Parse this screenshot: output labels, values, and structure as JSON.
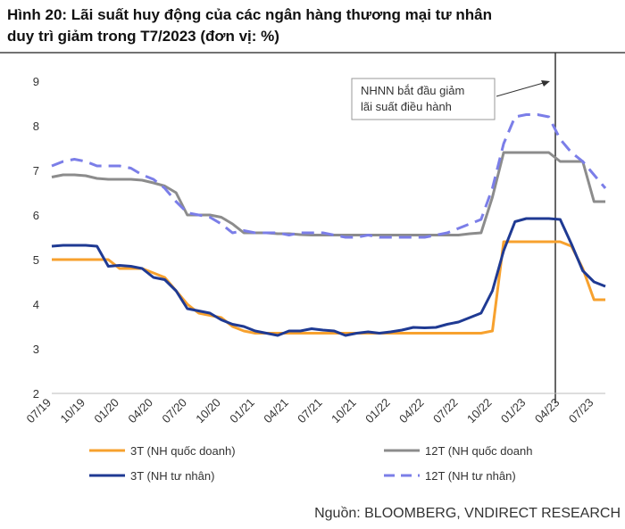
{
  "chart_data": {
    "type": "line",
    "title": [
      "Hình 20: Lãi suất huy động của các ngân hàng thương mại tư nhân",
      "duy trì giảm trong T7/2023 (đơn vị: %)"
    ],
    "annotation": [
      "NHNN bắt đầu giảm",
      "lãi suất điều hành"
    ],
    "source": "Nguồn: BLOOMBERG, VNDIRECT RESEARCH",
    "categories": [
      "07/19",
      null,
      null,
      "10/19",
      null,
      null,
      "01/20",
      null,
      null,
      "04/20",
      null,
      null,
      "07/20",
      null,
      null,
      "10/20",
      null,
      null,
      "01/21",
      null,
      null,
      "04/21",
      null,
      null,
      "07/21",
      null,
      null,
      "10/21",
      null,
      null,
      "01/22",
      null,
      null,
      "04/22",
      null,
      null,
      "07/22",
      null,
      null,
      "10/22",
      null,
      null,
      "01/23",
      null,
      null,
      "04/23",
      null,
      null,
      "07/23",
      null
    ],
    "ylim": [
      2,
      9
    ],
    "yticks": [
      2,
      3,
      4,
      5,
      6,
      7,
      8,
      9
    ],
    "series": [
      {
        "name": "3T (NH quốc doanh)",
        "color": "#f7a12e",
        "style": "solid",
        "values": [
          5.0,
          5.0,
          5.0,
          5.0,
          5.0,
          5.0,
          4.8,
          4.8,
          4.8,
          4.7,
          4.6,
          4.3,
          4.0,
          3.8,
          3.75,
          3.7,
          3.5,
          3.4,
          3.35,
          3.35,
          3.35,
          3.35,
          3.35,
          3.35,
          3.35,
          3.35,
          3.35,
          3.35,
          3.35,
          3.35,
          3.35,
          3.35,
          3.35,
          3.35,
          3.35,
          3.35,
          3.35,
          3.35,
          3.35,
          3.4,
          5.4,
          5.4,
          5.4,
          5.4,
          5.4,
          5.4,
          5.3,
          4.8,
          4.1,
          4.1
        ]
      },
      {
        "name": "12T (NH quốc doanh",
        "color": "#8c8c8c",
        "style": "solid",
        "values": [
          6.85,
          6.9,
          6.9,
          6.88,
          6.82,
          6.8,
          6.8,
          6.8,
          6.78,
          6.72,
          6.65,
          6.5,
          6.0,
          6.0,
          6.0,
          5.95,
          5.8,
          5.6,
          5.6,
          5.6,
          5.58,
          5.58,
          5.56,
          5.55,
          5.55,
          5.55,
          5.55,
          5.55,
          5.55,
          5.55,
          5.55,
          5.55,
          5.55,
          5.55,
          5.55,
          5.55,
          5.55,
          5.58,
          5.6,
          6.4,
          7.4,
          7.4,
          7.4,
          7.4,
          7.4,
          7.2,
          7.2,
          7.2,
          6.3,
          6.3
        ]
      },
      {
        "name": "3T (NH tư nhân)",
        "color": "#1f3a93",
        "style": "solid",
        "values": [
          5.3,
          5.32,
          5.32,
          5.32,
          5.3,
          4.85,
          4.87,
          4.85,
          4.8,
          4.6,
          4.55,
          4.3,
          3.9,
          3.85,
          3.8,
          3.65,
          3.55,
          3.5,
          3.4,
          3.35,
          3.3,
          3.4,
          3.4,
          3.45,
          3.42,
          3.4,
          3.3,
          3.35,
          3.38,
          3.35,
          3.38,
          3.42,
          3.48,
          3.47,
          3.48,
          3.55,
          3.6,
          3.7,
          3.8,
          4.3,
          5.2,
          5.85,
          5.92,
          5.92,
          5.92,
          5.9,
          5.35,
          4.75,
          4.5,
          4.4
        ]
      },
      {
        "name": "12T (NH tư nhân)",
        "color": "#7b7ee8",
        "style": "dashed",
        "values": [
          7.1,
          7.2,
          7.25,
          7.2,
          7.1,
          7.1,
          7.1,
          7.05,
          6.9,
          6.8,
          6.6,
          6.3,
          6.05,
          6.0,
          5.95,
          5.8,
          5.6,
          5.65,
          5.6,
          5.6,
          5.6,
          5.55,
          5.6,
          5.6,
          5.6,
          5.55,
          5.5,
          5.5,
          5.55,
          5.5,
          5.5,
          5.5,
          5.5,
          5.5,
          5.55,
          5.6,
          5.7,
          5.8,
          5.9,
          6.6,
          7.6,
          8.2,
          8.25,
          8.25,
          8.2,
          7.7,
          7.4,
          7.2,
          6.9,
          6.6
        ]
      }
    ]
  }
}
